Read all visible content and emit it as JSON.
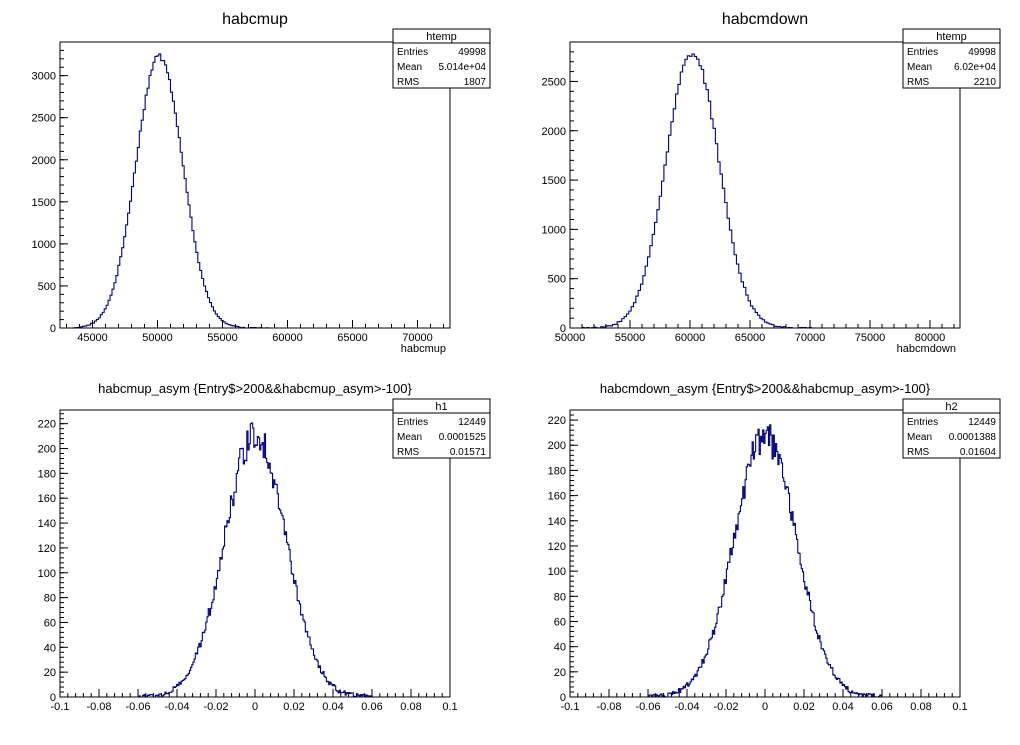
{
  "style": {
    "line_color": "#000080",
    "frame_color": "#000000",
    "background": "#ffffff"
  },
  "chart_data": [
    {
      "type": "histogram",
      "title": "habcmup",
      "xlabel": "habcmup",
      "ylabel": "",
      "xlim": [
        42500,
        72500
      ],
      "ylim": [
        0,
        3400
      ],
      "xticks": [
        "45000",
        "50000",
        "55000",
        "60000",
        "65000",
        "70000"
      ],
      "yticks": [
        "0",
        "500",
        "1000",
        "1500",
        "2000",
        "2500",
        "3000"
      ],
      "stats": {
        "name": "htemp",
        "entries": "49998",
        "mean": "5.014e+04",
        "rms": "1807"
      },
      "hist": {
        "mean": 50140,
        "sigma": 1807,
        "peak": 3230,
        "xmin": 43500,
        "xmax": 58500,
        "bins": 100,
        "noise": 0.012
      }
    },
    {
      "type": "histogram",
      "title": "habcmdown",
      "xlabel": "habcmdown",
      "ylabel": "",
      "xlim": [
        50000,
        82500
      ],
      "ylim": [
        0,
        2900
      ],
      "xticks": [
        "50000",
        "55000",
        "60000",
        "65000",
        "70000",
        "75000",
        "80000"
      ],
      "yticks": [
        "0",
        "500",
        "1000",
        "1500",
        "2000",
        "2500"
      ],
      "stats": {
        "name": "htemp",
        "entries": "49998",
        "mean": "6.02e+04",
        "rms": "2210"
      },
      "hist": {
        "mean": 60200,
        "sigma": 2210,
        "peak": 2800,
        "xmin": 51000,
        "xmax": 70500,
        "bins": 100,
        "noise": 0.015
      }
    },
    {
      "type": "histogram",
      "title": "habcmup_asym {Entry$>200&&habcmup_asym>-100}",
      "xlabel": "",
      "ylabel": "",
      "xlim": [
        -0.1,
        0.1
      ],
      "ylim": [
        0,
        231
      ],
      "xticks": [
        "-0.1",
        "-0.08",
        "-0.06",
        "-0.04",
        "-0.02",
        "0",
        "0.02",
        "0.04",
        "0.06",
        "0.08",
        "0.1"
      ],
      "yticks": [
        "0",
        "20",
        "40",
        "60",
        "80",
        "100",
        "120",
        "140",
        "160",
        "180",
        "200",
        "220"
      ],
      "stats": {
        "name": "h1",
        "entries": "12449",
        "mean": "0.0001525",
        "rms": "0.01571"
      },
      "hist": {
        "mean": 0.0001525,
        "sigma": 0.01571,
        "peak": 212,
        "xmin": -0.06,
        "xmax": 0.06,
        "bins": 200,
        "noise": 0.06
      }
    },
    {
      "type": "histogram",
      "title": "habcmdown_asym {Entry$>200&&habcmup_asym>-100}",
      "xlabel": "",
      "ylabel": "",
      "xlim": [
        -0.1,
        0.1
      ],
      "ylim": [
        0,
        228
      ],
      "xticks": [
        "-0.1",
        "-0.08",
        "-0.06",
        "-0.04",
        "-0.02",
        "0",
        "0.02",
        "0.04",
        "0.06",
        "0.08",
        "0.1"
      ],
      "yticks": [
        "0",
        "20",
        "40",
        "60",
        "80",
        "100",
        "120",
        "140",
        "160",
        "180",
        "200",
        "220"
      ],
      "stats": {
        "name": "h2",
        "entries": "12449",
        "mean": "0.0001388",
        "rms": "0.01604"
      },
      "hist": {
        "mean": 0.0001388,
        "sigma": 0.01604,
        "peak": 207,
        "xmin": -0.06,
        "xmax": 0.06,
        "bins": 200,
        "noise": 0.06
      }
    }
  ],
  "stats_labels": {
    "entries": "Entries",
    "mean": "Mean",
    "rms": "RMS"
  }
}
